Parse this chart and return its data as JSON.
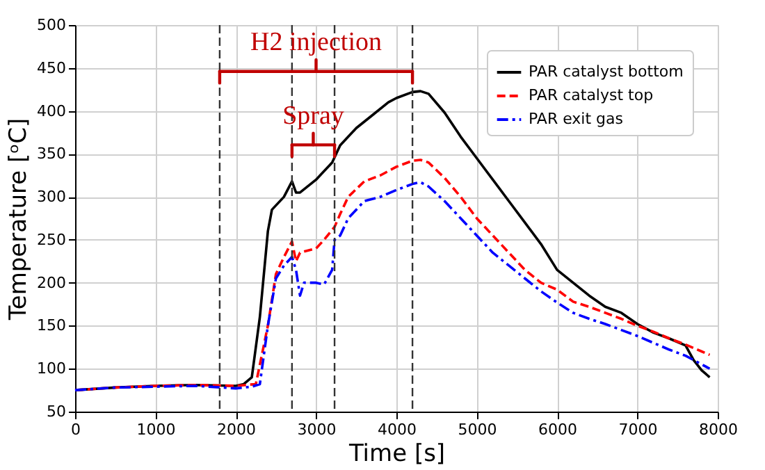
{
  "chart_data": {
    "type": "line",
    "xlabel": "Time [s]",
    "ylabel": "Temperature [ᵒC]",
    "xlim": [
      0,
      8000
    ],
    "xticks": [
      0,
      1000,
      2000,
      3000,
      4000,
      5000,
      6000,
      7000,
      8000
    ],
    "ylim": [
      50,
      500
    ],
    "yticks": [
      50,
      100,
      150,
      200,
      250,
      300,
      350,
      400,
      450,
      500
    ],
    "grid": true,
    "legend": "top right",
    "series": [
      {
        "name": "PAR catalyst bottom",
        "color": "#000000",
        "line_style": "solid",
        "x": [
          0,
          500,
          1000,
          1500,
          2000,
          2100,
          2200,
          2300,
          2400,
          2450,
          2600,
          2700,
          2750,
          2800,
          3000,
          3200,
          3300,
          3500,
          3700,
          3900,
          4000,
          4200,
          4300,
          4400,
          4600,
          4800,
          5000,
          5200,
          5400,
          5600,
          5800,
          6000,
          6200,
          6400,
          6600,
          6800,
          7000,
          7200,
          7400,
          7600,
          7700,
          7800,
          7900
        ],
        "values": [
          75,
          78,
          80,
          81,
          80,
          82,
          90,
          160,
          260,
          285,
          300,
          318,
          305,
          305,
          320,
          340,
          360,
          380,
          395,
          410,
          415,
          422,
          423,
          420,
          398,
          370,
          345,
          320,
          295,
          270,
          245,
          215,
          200,
          185,
          172,
          165,
          152,
          142,
          135,
          127,
          110,
          98,
          90
        ]
      },
      {
        "name": "PAR catalyst top",
        "color": "#ff0000",
        "line_style": "dashed",
        "x": [
          0,
          500,
          1000,
          1500,
          2000,
          2250,
          2400,
          2500,
          2600,
          2700,
          2750,
          2800,
          3000,
          3100,
          3230,
          3300,
          3400,
          3600,
          3800,
          4000,
          4200,
          4300,
          4400,
          4600,
          4800,
          5000,
          5200,
          5400,
          5600,
          5800,
          6000,
          6200,
          6400,
          6600,
          6800,
          7000,
          7200,
          7400,
          7600,
          7800,
          7900
        ],
        "values": [
          75,
          78,
          80,
          81,
          80,
          82,
          150,
          210,
          230,
          248,
          225,
          235,
          240,
          250,
          265,
          280,
          300,
          318,
          325,
          335,
          342,
          343,
          340,
          322,
          300,
          275,
          255,
          235,
          215,
          200,
          192,
          178,
          172,
          165,
          158,
          150,
          143,
          135,
          128,
          120,
          116
        ]
      },
      {
        "name": "PAR exit gas",
        "color": "#0000ff",
        "line_style": "dashdot",
        "x": [
          0,
          500,
          1000,
          1500,
          2000,
          2200,
          2300,
          2400,
          2500,
          2600,
          2700,
          2750,
          2800,
          2850,
          3000,
          3100,
          3200,
          3230,
          3300,
          3400,
          3600,
          3800,
          4000,
          4200,
          4300,
          4400,
          4600,
          4800,
          5000,
          5200,
          5400,
          5600,
          5800,
          6000,
          6200,
          6400,
          6600,
          6800,
          7000,
          7200,
          7400,
          7600,
          7800,
          7900
        ],
        "values": [
          75,
          78,
          79,
          80,
          77,
          79,
          82,
          150,
          205,
          220,
          230,
          215,
          185,
          200,
          200,
          198,
          215,
          250,
          255,
          275,
          295,
          300,
          308,
          315,
          317,
          312,
          295,
          275,
          255,
          235,
          220,
          205,
          190,
          177,
          165,
          158,
          152,
          145,
          138,
          130,
          122,
          115,
          105,
          100
        ]
      }
    ],
    "ref_lines": [
      {
        "axis": "x",
        "value": 1800,
        "color": "#333333",
        "line_style": "dashed"
      },
      {
        "axis": "x",
        "value": 4200,
        "color": "#333333",
        "line_style": "dashed"
      },
      {
        "axis": "x",
        "value": 2700,
        "color": "#333333",
        "line_style": "dashed"
      },
      {
        "axis": "x",
        "value": 3230,
        "color": "#333333",
        "line_style": "dashed"
      }
    ],
    "annotations": [
      "H2 injection",
      "Spray"
    ]
  }
}
